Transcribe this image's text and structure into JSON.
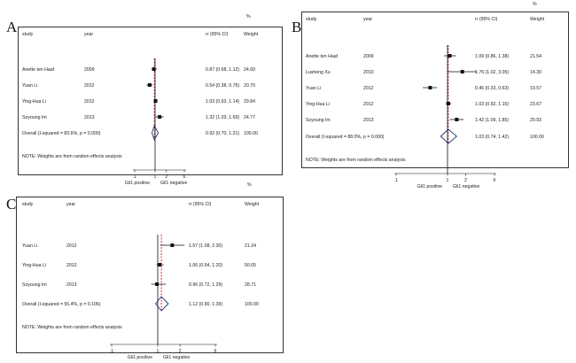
{
  "chart_data": [
    {
      "type": "forest",
      "panel": "A",
      "headers": {
        "study": "study",
        "year": "year",
        "ci": "rr (95% CI)",
        "pct": "%",
        "weight": "Weight"
      },
      "rows": [
        {
          "study": "Anette ten Haaf",
          "year": "2009",
          "est": 0.87,
          "lo": 0.68,
          "hi": 1.12,
          "ci_text": "0.87 (0.68, 1.12)",
          "weight": "24.69"
        },
        {
          "study": "Yuan Li",
          "year": "2012",
          "est": 0.54,
          "lo": 0.38,
          "hi": 0.76,
          "ci_text": "0.54 (0.38, 0.76)",
          "weight": "20.70"
        },
        {
          "study": "Ying-Hua Li",
          "year": "2012",
          "est": 1.03,
          "lo": 0.93,
          "hi": 1.14,
          "ci_text": "1.03 (0.93, 1.14)",
          "weight": "29.84"
        },
        {
          "study": "Soyoung Im",
          "year": "2013",
          "est": 1.32,
          "lo": 1.03,
          "hi": 1.69,
          "ci_text": "1.32 (1.03, 1.69)",
          "weight": "24.77"
        }
      ],
      "overall": {
        "label": "Overall  (I-squared = 83.6%, p = 0.000)",
        "est": 0.92,
        "lo": 0.7,
        "hi": 1.21,
        "ci_text": "0.92 (0.70, 1.21)",
        "weight": "100.00"
      },
      "note": "NOTE: Weights are from random effects analysis",
      "xscale": "log",
      "xlim": [
        0.1,
        6
      ],
      "ticks": [
        ".1",
        "1",
        "2",
        "6"
      ],
      "tick_values": [
        0.1,
        1,
        2,
        6
      ],
      "xlabel_left": "Gli1 positive",
      "xlabel_right": "Gli1 negative"
    },
    {
      "type": "forest",
      "panel": "B",
      "headers": {
        "study": "study",
        "year": "year",
        "ci": "rr (95% CI)",
        "pct": "%",
        "weight": "Weight"
      },
      "rows": [
        {
          "study": "Anette ten Haaf",
          "year": "2009",
          "est": 1.09,
          "lo": 0.86,
          "hi": 1.38,
          "ci_text": "1.09 (0.86, 1.38)",
          "weight": "21.54"
        },
        {
          "study": "Lusheng Xu",
          "year": "2010",
          "est": 1.76,
          "lo": 1.02,
          "hi": 3.05,
          "ci_text": "1.76 (1.02, 3.05)",
          "weight": "14.30"
        },
        {
          "study": "Yuan Li",
          "year": "2012",
          "est": 0.46,
          "lo": 0.33,
          "hi": 0.63,
          "ci_text": "0.46 (0.33, 0.63)",
          "weight": "19.57"
        },
        {
          "study": "Ying-Hua Li",
          "year": "2012",
          "est": 1.03,
          "lo": 0.92,
          "hi": 1.15,
          "ci_text": "1.03 (0.92, 1.15)",
          "weight": "23.67"
        },
        {
          "study": "Soyoung Im",
          "year": "2013",
          "est": 1.42,
          "lo": 1.09,
          "hi": 1.85,
          "ci_text": "1.42 (1.09, 1.85)",
          "weight": "20.93"
        }
      ],
      "overall": {
        "label": "Overall  (I-squared = 88.0%, p = 0.000)",
        "est": 1.03,
        "lo": 0.74,
        "hi": 1.42,
        "ci_text": "1.03 (0.74, 1.42)",
        "weight": "100.00"
      },
      "note": "NOTE: Weights are from random effects analysis",
      "xscale": "log",
      "xlim": [
        0.1,
        6
      ],
      "ticks": [
        ".1",
        "1",
        "2",
        "6"
      ],
      "tick_values": [
        0.1,
        1,
        2,
        6
      ],
      "xlabel_left": "Gli1 positive",
      "xlabel_right": "Gli1 negative"
    },
    {
      "type": "forest",
      "panel": "C",
      "headers": {
        "study": "study",
        "year": "year",
        "ci": "rr (95% CI)",
        "pct": "%",
        "weight": "Weight"
      },
      "rows": [
        {
          "study": "Yuan Li",
          "year": "2012",
          "est": 1.57,
          "lo": 1.08,
          "hi": 2.3,
          "ci_text": "1.57 (1.08, 2.30)",
          "weight": "21.24"
        },
        {
          "study": "Ying-Hua Li",
          "year": "2012",
          "est": 1.06,
          "lo": 0.94,
          "hi": 1.2,
          "ci_text": "1.06 (0.94, 1.20)",
          "weight": "50.05"
        },
        {
          "study": "Soyoung Im",
          "year": "2013",
          "est": 0.96,
          "lo": 0.72,
          "hi": 1.29,
          "ci_text": "0.96 (0.72, 1.29)",
          "weight": "28.71"
        }
      ],
      "overall": {
        "label": "Overall  (I-squared = 55.4%, p = 0.106)",
        "est": 1.12,
        "lo": 0.9,
        "hi": 1.39,
        "ci_text": "1.12 (0.90, 1.39)",
        "weight": "100.00"
      },
      "note": "NOTE: Weights are from random effects analysis",
      "xscale": "log",
      "xlim": [
        0.1,
        6
      ],
      "ticks": [
        ".1",
        "1",
        "2",
        "6"
      ],
      "tick_values": [
        0.1,
        1,
        2,
        6
      ],
      "xlabel_left": "Gli1 positive",
      "xlabel_right": "Gli1 negative"
    }
  ]
}
